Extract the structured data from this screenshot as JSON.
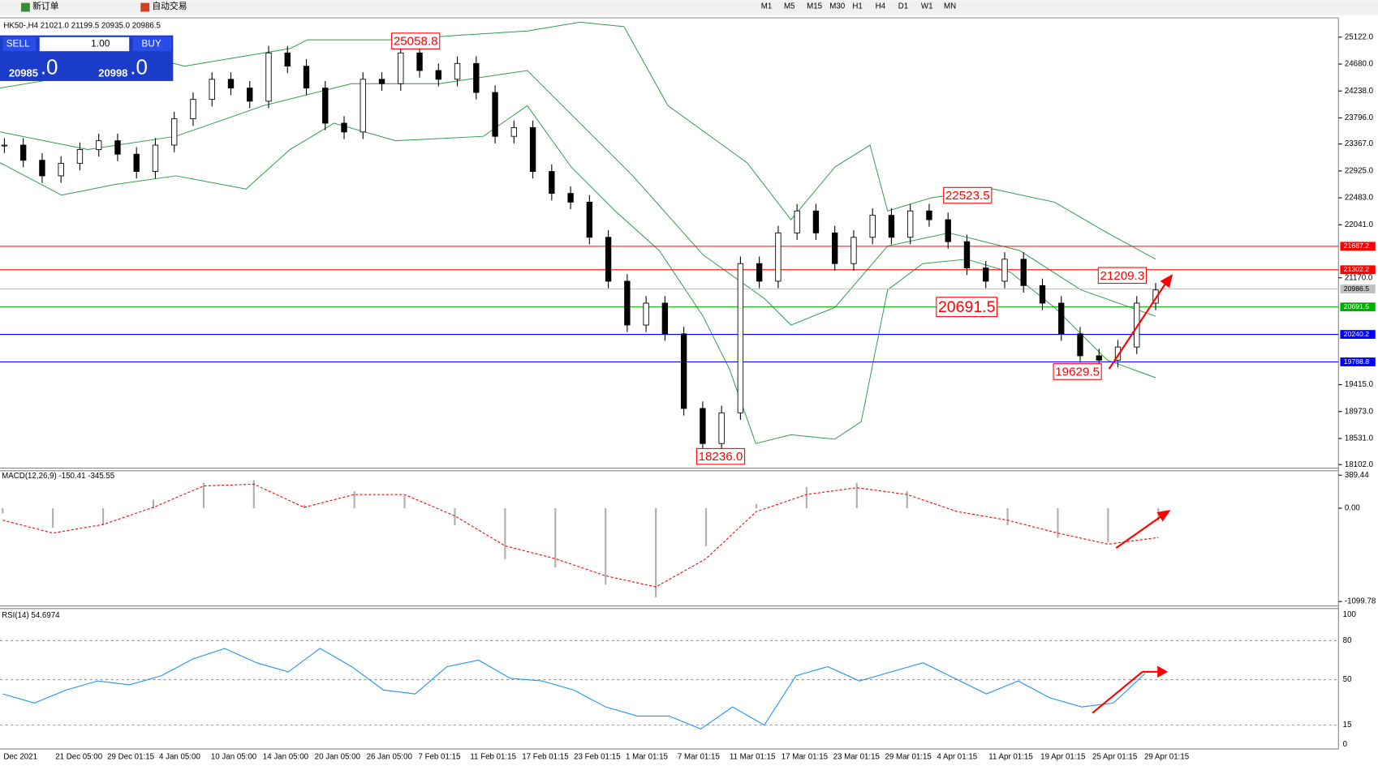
{
  "toolbar": {
    "new_order": "新订单",
    "auto_trading": "自动交易",
    "timeframes": [
      "M1",
      "M5",
      "M15",
      "M30",
      "H1",
      "H4",
      "D1",
      "W1",
      "MN"
    ]
  },
  "trade_panel": {
    "sell": "SELL",
    "buy": "BUY",
    "lots": "1.00",
    "bid_main": "20985",
    "bid_big": ".0",
    "ask_main": "20998",
    "ask_big": ".0"
  },
  "chart": {
    "header": "HK50-,H4  21021.0 21199.5 20935.0 20986.5",
    "ylim": [
      18102,
      25122
    ],
    "yticks": [
      {
        "value": 25122,
        "label": "25122.0"
      },
      {
        "value": 24680,
        "label": "24680.0"
      },
      {
        "value": 24238,
        "label": "24238.0"
      },
      {
        "value": 23796,
        "label": "23796.0"
      },
      {
        "value": 23367,
        "label": "23367.0"
      },
      {
        "value": 22925,
        "label": "22925.0"
      },
      {
        "value": 22483,
        "label": "22483.0"
      },
      {
        "value": 22041,
        "label": "22041.0"
      },
      {
        "value": 21170,
        "label": "21170.0"
      },
      {
        "value": 19415,
        "label": "19415.0"
      },
      {
        "value": 18973,
        "label": "18973.0"
      },
      {
        "value": 18531,
        "label": "18531.0"
      },
      {
        "value": 18102,
        "label": "18102.0"
      }
    ],
    "levels": [
      {
        "value": 21687.2,
        "label": "21687.2",
        "color": "#ff0000"
      },
      {
        "value": 21302.2,
        "label": "21302.2",
        "color": "#ff0000"
      },
      {
        "value": 20986.5,
        "label": "20986.5",
        "color": "#c0c0c0"
      },
      {
        "value": 20691.5,
        "label": "20691.5",
        "color": "#00b000"
      },
      {
        "value": 20240.2,
        "label": "20240.2",
        "color": "#0000ff"
      },
      {
        "value": 19788.8,
        "label": "19788.8",
        "color": "#0000ff"
      }
    ],
    "annotations": [
      {
        "value": 25058.8,
        "label": "25058.8"
      },
      {
        "value": 22523.5,
        "label": "22523.5"
      },
      {
        "value": 21209.3,
        "label": "21209.3"
      },
      {
        "value": 20691.5,
        "label": "20691.5"
      },
      {
        "value": 19629.5,
        "label": "19629.5"
      },
      {
        "value": 18236,
        "label": "18236.0"
      }
    ],
    "closes": [
      23349,
      23100,
      22844,
      23050,
      23277,
      23421,
      23200,
      22916,
      23349,
      23781,
      24100,
      24430,
      24286,
      24070,
      24863,
      24646,
      24286,
      23709,
      23565,
      24430,
      24358,
      24863,
      24574,
      24430,
      24690,
      24214,
      23493,
      23637,
      22916,
      22556,
      22412,
      21835,
      21114,
      20394,
      20754,
      20250,
      19024,
      18448,
      18953,
      21403,
      21114,
      21907,
      22268,
      21907,
      21403,
      21835,
      22196,
      21835,
      22268,
      22124,
      21763,
      21331,
      21114,
      21475,
      21042,
      20754,
      20250,
      19889,
      19817,
      20033,
      20754,
      20970
    ],
    "dates": [
      "Dec 2021",
      "21 Dec 05:00",
      "29 Dec 01:15",
      "4 Jan 05:00",
      "10 Jan 05:00",
      "14 Jan 05:00",
      "20 Jan 05:00",
      "26 Jan 05:00",
      "7 Feb 01:15",
      "11 Feb 01:15",
      "17 Feb 01:15",
      "23 Feb 01:15",
      "1 Mar 01:15",
      "7 Mar 01:15",
      "11 Mar 01:15",
      "17 Mar 01:15",
      "23 Mar 01:15",
      "29 Mar 01:15",
      "4 Apr 01:15",
      "11 Apr 01:15",
      "19 Apr 01:15",
      "25 Apr 01:15",
      "29 Apr 01:15"
    ]
  },
  "macd": {
    "header": "MACD(12,26,9) -150.41 -345.55",
    "ylim": [
      -1099.78,
      389.44
    ],
    "yticks": [
      389.44,
      {
        "value": 0,
        "label": "0.00"
      },
      -1099.78
    ],
    "histogram": [
      -60,
      -230,
      -200,
      100,
      300,
      330,
      40,
      200,
      150,
      -200,
      -600,
      -700,
      -900,
      -1050,
      -450,
      50,
      250,
      300,
      200,
      0,
      -200,
      -350,
      -400,
      -150.41
    ],
    "signal": [
      -141,
      -293,
      -192,
      10,
      262,
      283,
      10,
      161,
      161,
      -91,
      -444,
      -595,
      -797,
      -928,
      -595,
      -40,
      161,
      242,
      161,
      -40,
      -141,
      -293,
      -424,
      -345.55
    ]
  },
  "rsi": {
    "header": "RSI(14) 54.6974",
    "ylim": [
      0,
      100
    ],
    "yticks": [
      100,
      80,
      50,
      15,
      0
    ],
    "values": [
      39,
      32,
      42,
      49,
      46,
      53,
      66,
      74,
      63,
      56,
      74,
      60,
      42,
      39,
      60,
      65,
      51,
      49,
      42,
      29,
      22,
      22,
      12,
      29,
      15,
      53,
      60,
      49,
      56,
      63,
      51,
      39,
      49,
      36,
      29,
      32,
      54.6974
    ]
  }
}
